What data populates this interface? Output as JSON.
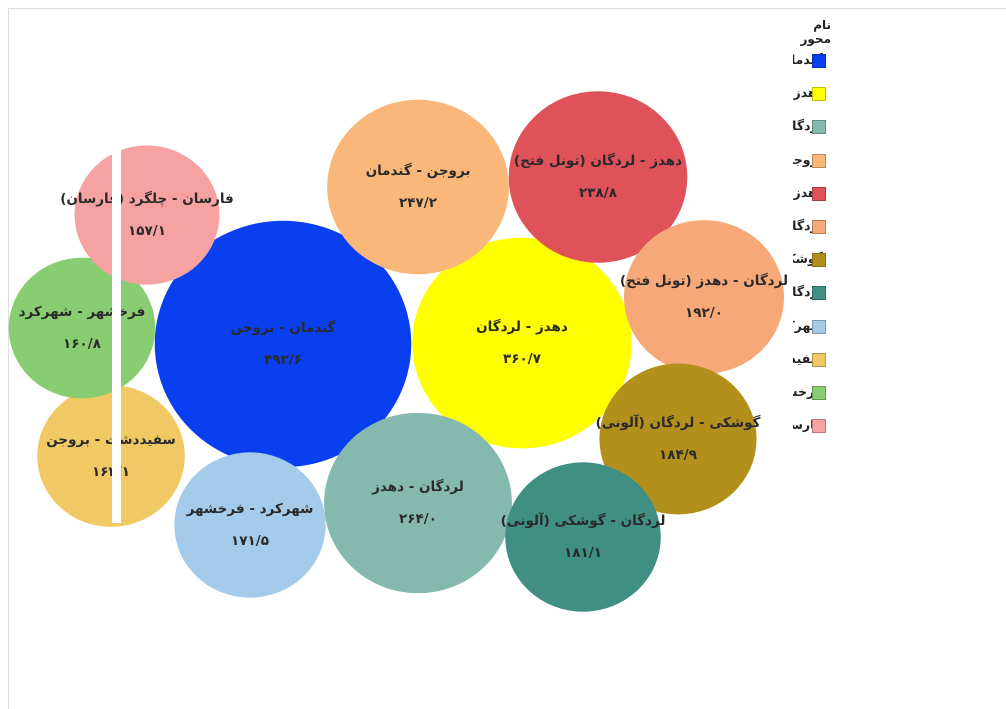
{
  "chart_data": {
    "type": "bubble",
    "legend_title": "نام محور",
    "legend_position": "right",
    "series": [
      {
        "name": "گندمان - بروجن",
        "value_label": "۴۹۲/۶",
        "value": 492.6,
        "color": "#0a3ff0"
      },
      {
        "name": "دهدز - لردگان",
        "value_label": "۳۶۰/۷",
        "value": 360.7,
        "color": "#ffff00"
      },
      {
        "name": "لردگان - دهدز",
        "value_label": "۲۶۴/۰",
        "value": 264.0,
        "color": "#86b9ad"
      },
      {
        "name": "بروجن - گندمان",
        "value_label": "۲۴۷/۲",
        "value": 247.2,
        "color": "#f9b77a"
      },
      {
        "name": "دهدز - لردگان (تونل فتح)",
        "value_label": "۲۳۸/۸",
        "value": 238.8,
        "color": "#e0525a"
      },
      {
        "name": "لردگان - دهدز (تونل فتح)",
        "value_label": "۱۹۲/۰",
        "value": 192.0,
        "color": "#f7a878"
      },
      {
        "name": "گوشکی - لردگان (آلونی)",
        "value_label": "۱۸۴/۹",
        "value": 184.9,
        "color": "#b3901c"
      },
      {
        "name": "لردگان - گوشکی (آلونی)",
        "value_label": "۱۸۱/۱",
        "value": 181.1,
        "color": "#3f8f83"
      },
      {
        "name": "شهرکرد - فرخشهر",
        "value_label": "۱۷۱/۵",
        "value": 171.5,
        "color": "#a4cbea"
      },
      {
        "name": "سفیددشت - بروجن",
        "value_label": "۱۶۳/۱",
        "value": 163.1,
        "color": "#f0c965"
      },
      {
        "name": "فرخشهر - شهرکرد",
        "value_label": "۱۶۰/۸",
        "value": 160.8,
        "color": "#88cd72"
      },
      {
        "name": "فارسان - چلگرد (فارسان)",
        "value_label": "۱۵۷/۱",
        "value": 157.1,
        "color": "#f6a2a2"
      }
    ]
  }
}
